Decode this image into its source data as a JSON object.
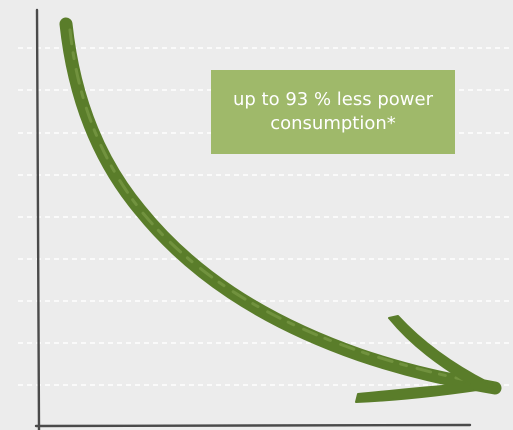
{
  "colors": {
    "background": "#ececec",
    "grid": "#ffffff",
    "axis": "#4a4a4a",
    "arrow": "#5a7d2a",
    "callout_bg": "#9fb96a",
    "callout_text": "#ffffff"
  },
  "callout": {
    "text": "up to 93 % less power consumption*"
  },
  "chart_data": {
    "type": "line",
    "title": "",
    "xlabel": "",
    "ylabel": "",
    "grid": true,
    "grid_style": "dashed horizontal",
    "legend": "none",
    "series": [
      {
        "style": "hand-drawn arrow, decreasing curve",
        "annotation": "up to 93 % less power consumption*",
        "reduction_percent": 93
      }
    ]
  }
}
